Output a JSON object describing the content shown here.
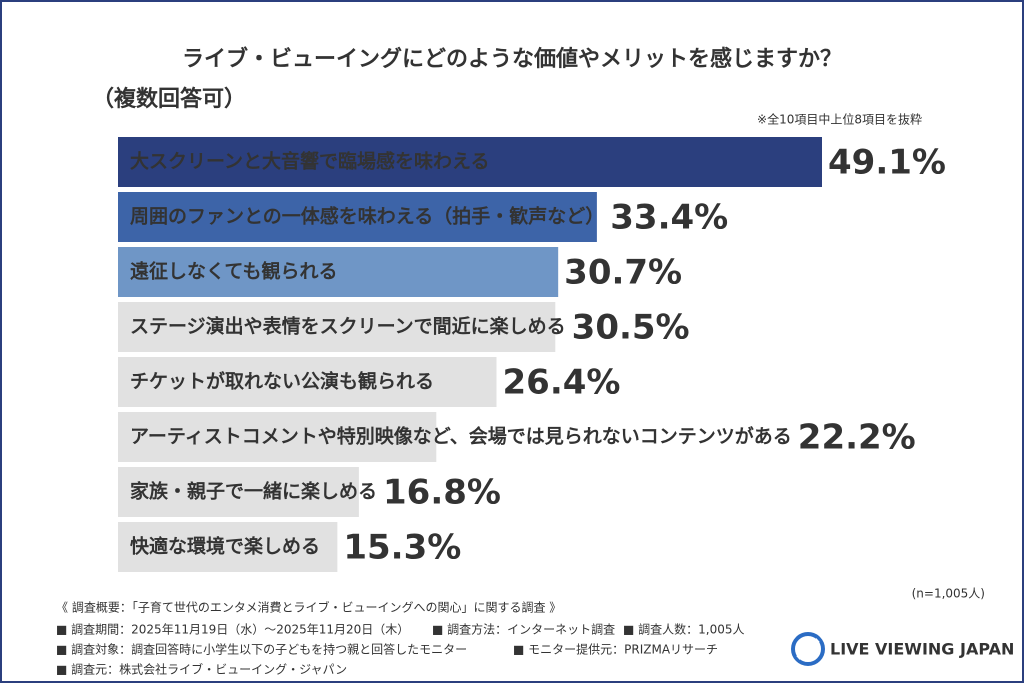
{
  "chart_data": {
    "type": "bar",
    "orientation": "horizontal",
    "title": "ライブ・ビューイングにどのような価値やメリットを感じますか？",
    "subtitle": "（複数回答可）",
    "note": "※全10項目中上位8項目を抜粋",
    "sample_size": "(n=1,005人)",
    "categories": [
      "大スクリーンと大音響で臨場感を味わえる",
      "周囲のファンとの一体感を味わえる（拍手・歓声など）",
      "遠征しなくても観られる",
      "ステージ演出や表情をスクリーンで間近に楽しめる",
      "チケットが取れない公演も観られる",
      "アーティストコメントや特別映像など、会場では見られないコンテンツがある",
      "家族・親子で一緒に楽しめる",
      "快適な環境で楽しめる"
    ],
    "values": [
      49.1,
      33.4,
      30.7,
      30.5,
      26.4,
      22.2,
      16.8,
      15.3
    ],
    "value_labels": [
      "49.1%",
      "33.4%",
      "30.7%",
      "30.5%",
      "26.4%",
      "22.2%",
      "16.8%",
      "15.3%"
    ],
    "colors": [
      "#2b3f7e",
      "#3d64a8",
      "#6f96c6",
      "#e1e1e1",
      "#e1e1e1",
      "#e1e1e1",
      "#e1e1e1",
      "#e1e1e1"
    ]
  },
  "survey": {
    "heading": "《 調査概要：「子育て世代のエンタメ消費とライブ・ビューイングへの関心」に関する調査 》",
    "items": [
      "■ 調査期間：2025年11月19日（水）〜2025年11月20日（木）",
      "■ 調査方法：インターネット調査",
      "■ 調査人数：1,005人",
      "■ 調査対象：調査回答時に小学生以下の子どもを持つ親と回答したモニター",
      "■ モニター提供元：PRIZMAリサーチ",
      "■ 調査元：株式会社ライブ・ビューイング・ジャパン"
    ]
  },
  "logo": "LIVE VIEWING JAPAN"
}
